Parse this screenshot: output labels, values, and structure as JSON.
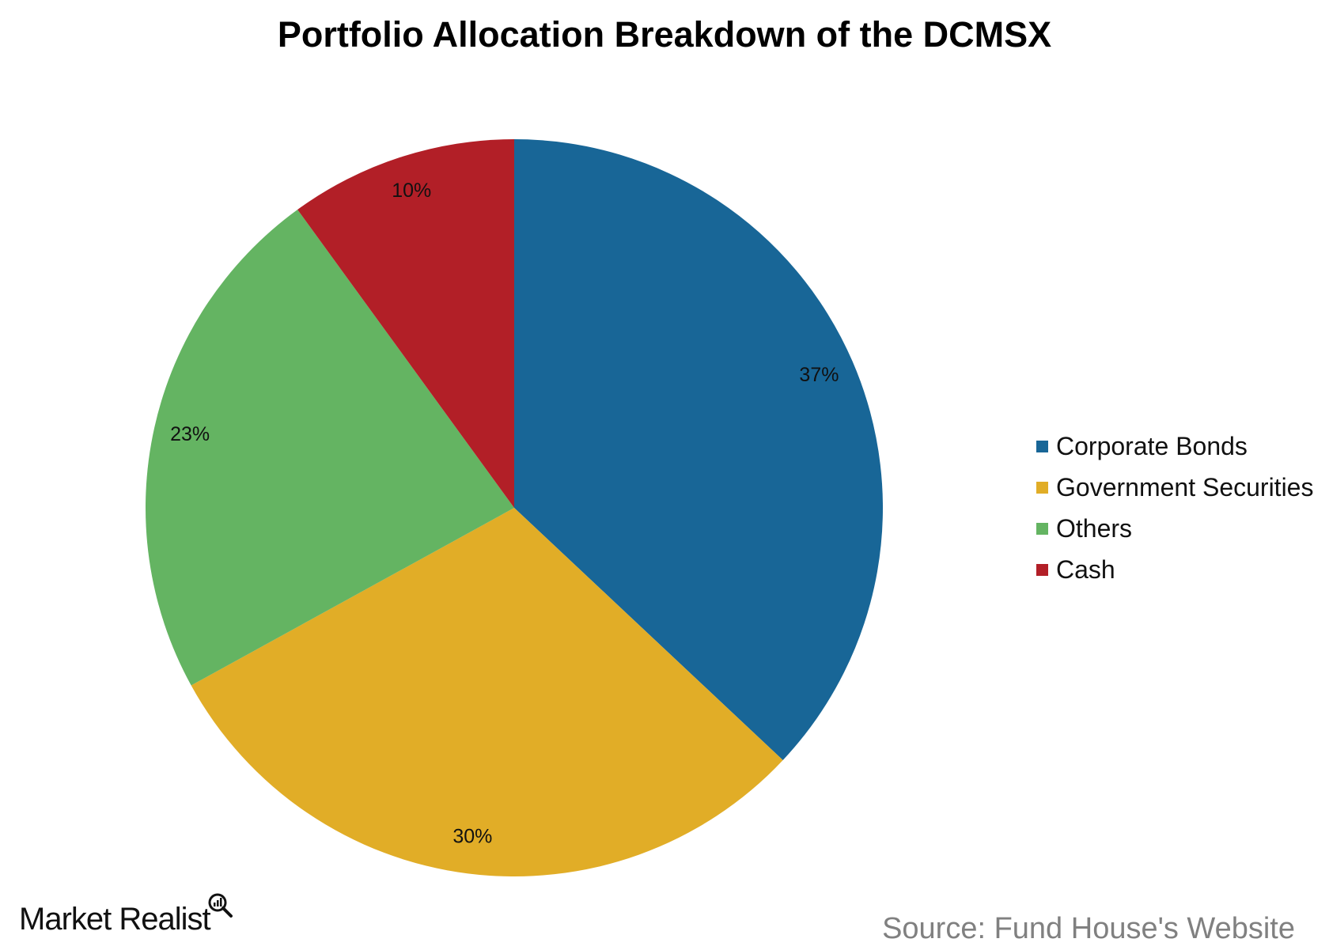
{
  "chart_data": {
    "type": "pie",
    "title": "Portfolio Allocation Breakdown of the DCMSX",
    "slices": [
      {
        "label": "Corporate Bonds",
        "value": 37,
        "display": "37%",
        "color": "#186697"
      },
      {
        "label": "Government Securities",
        "value": 30,
        "display": "30%",
        "color": "#e1ad27"
      },
      {
        "label": "Others",
        "value": 23,
        "display": "23%",
        "color": "#64b462"
      },
      {
        "label": "Cash",
        "value": 10,
        "display": "10%",
        "color": "#b21f27"
      }
    ],
    "legend_position": "right"
  },
  "branding": {
    "logo_text": "Market Realist",
    "logo_icon": "magnifier-chart-icon"
  },
  "source": "Source: Fund House's Website"
}
